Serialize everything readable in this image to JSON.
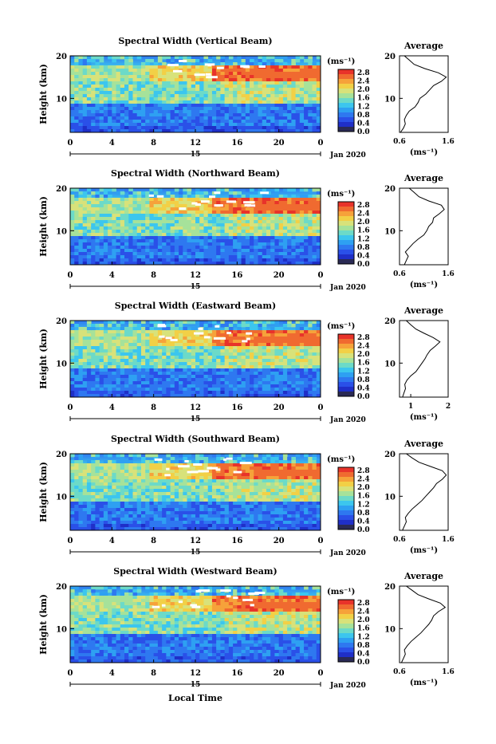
{
  "colors": {
    "colorbar": [
      "#2a2a55",
      "#1f2fc8",
      "#2a50e8",
      "#2e78f0",
      "#2ea0f2",
      "#3cc6ee",
      "#6cdac8",
      "#a6e29a",
      "#d8e27a",
      "#f2d046",
      "#f6a23a",
      "#f06a30",
      "#e8332a"
    ]
  },
  "x_ticks": [
    "0",
    "4",
    "8",
    "12",
    "16",
    "20",
    "0"
  ],
  "x_day_label": "15",
  "date_label": "Jan 2020",
  "x_axis_title": "Local Time",
  "colorbar_unit": "(ms⁻¹)",
  "colorbar_ticks": [
    "2.8",
    "2.4",
    "2.0",
    "1.6",
    "1.2",
    "0.8",
    "0.4",
    "0.0"
  ],
  "avg_title": "Average",
  "avg_unit": "(ms⁻¹)",
  "height_ticks": [
    "20",
    "10"
  ],
  "ylabel": "Height (km)",
  "chart_data": [
    {
      "type": "heatmap",
      "title": "Spectral Width (Vertical Beam)",
      "ylabel": "Height (km)",
      "xlabel": "Local Time",
      "ylim": [
        2,
        20
      ],
      "xlim": [
        0,
        24
      ],
      "average_profile": {
        "xticks": [
          "0.6",
          "1.6"
        ],
        "xlim": [
          0.6,
          1.6
        ],
        "height": [
          2,
          3,
          4,
          5,
          6,
          7,
          8,
          9,
          10,
          11,
          12,
          13,
          14,
          15,
          16,
          17,
          18,
          19,
          20
        ],
        "value": [
          0.62,
          0.68,
          0.72,
          0.7,
          0.74,
          0.8,
          0.92,
          0.98,
          1.02,
          1.14,
          1.22,
          1.3,
          1.46,
          1.56,
          1.4,
          1.12,
          0.9,
          0.8,
          0.7
        ]
      }
    },
    {
      "type": "heatmap",
      "title": "Spectral Width (Northward Beam)",
      "ylabel": "Height (km)",
      "xlabel": "Local Time",
      "ylim": [
        2,
        20
      ],
      "xlim": [
        0,
        24
      ],
      "average_profile": {
        "xticks": [
          "0.6",
          "1.6"
        ],
        "xlim": [
          0.6,
          1.6
        ],
        "height": [
          2,
          3,
          4,
          5,
          6,
          7,
          8,
          9,
          10,
          11,
          12,
          13,
          14,
          15,
          16,
          17,
          18,
          19,
          20
        ],
        "value": [
          0.7,
          0.74,
          0.78,
          0.72,
          0.8,
          0.88,
          0.98,
          1.1,
          1.16,
          1.2,
          1.28,
          1.3,
          1.42,
          1.52,
          1.46,
          1.2,
          1.0,
          0.9,
          0.8
        ]
      }
    },
    {
      "type": "heatmap",
      "title": "Spectral Width (Eastward Beam)",
      "ylabel": "Height (km)",
      "xlabel": "Local Time",
      "ylim": [
        2,
        20
      ],
      "xlim": [
        0,
        24
      ],
      "average_profile": {
        "xticks": [
          "1",
          "2"
        ],
        "xlim": [
          0.7,
          2.0
        ],
        "height": [
          2,
          3,
          4,
          5,
          6,
          7,
          8,
          9,
          10,
          11,
          12,
          13,
          14,
          15,
          16,
          17,
          18,
          19,
          20
        ],
        "value": [
          0.78,
          0.82,
          0.86,
          0.84,
          0.9,
          1.0,
          1.14,
          1.22,
          1.3,
          1.38,
          1.44,
          1.52,
          1.66,
          1.78,
          1.6,
          1.36,
          1.14,
          1.0,
          0.88
        ]
      }
    },
    {
      "type": "heatmap",
      "title": "Spectral Width (Southward Beam)",
      "ylabel": "Height (km)",
      "xlabel": "Local Time",
      "ylim": [
        2,
        20
      ],
      "xlim": [
        0,
        24
      ],
      "average_profile": {
        "xticks": [
          "0.6",
          "1.6"
        ],
        "xlim": [
          0.6,
          1.6
        ],
        "height": [
          2,
          3,
          4,
          5,
          6,
          7,
          8,
          9,
          10,
          11,
          12,
          13,
          14,
          15,
          16,
          17,
          18,
          19,
          20
        ],
        "value": [
          0.66,
          0.7,
          0.74,
          0.72,
          0.78,
          0.86,
          0.96,
          1.06,
          1.14,
          1.22,
          1.3,
          1.36,
          1.48,
          1.56,
          1.48,
          1.24,
          1.0,
          0.86,
          0.74
        ]
      }
    },
    {
      "type": "heatmap",
      "title": "Spectral Width (Westward Beam)",
      "ylabel": "Height (km)",
      "xlabel": "Local Time",
      "ylim": [
        2,
        20
      ],
      "xlim": [
        0,
        24
      ],
      "average_profile": {
        "xticks": [
          "0.6",
          "1.6"
        ],
        "xlim": [
          0.6,
          1.6
        ],
        "height": [
          2,
          3,
          4,
          5,
          6,
          7,
          8,
          9,
          10,
          11,
          12,
          13,
          14,
          15,
          16,
          17,
          18,
          19,
          20
        ],
        "value": [
          0.64,
          0.68,
          0.72,
          0.7,
          0.76,
          0.84,
          0.94,
          1.04,
          1.12,
          1.2,
          1.26,
          1.3,
          1.4,
          1.54,
          1.44,
          1.2,
          0.98,
          0.86,
          0.74
        ]
      }
    }
  ]
}
